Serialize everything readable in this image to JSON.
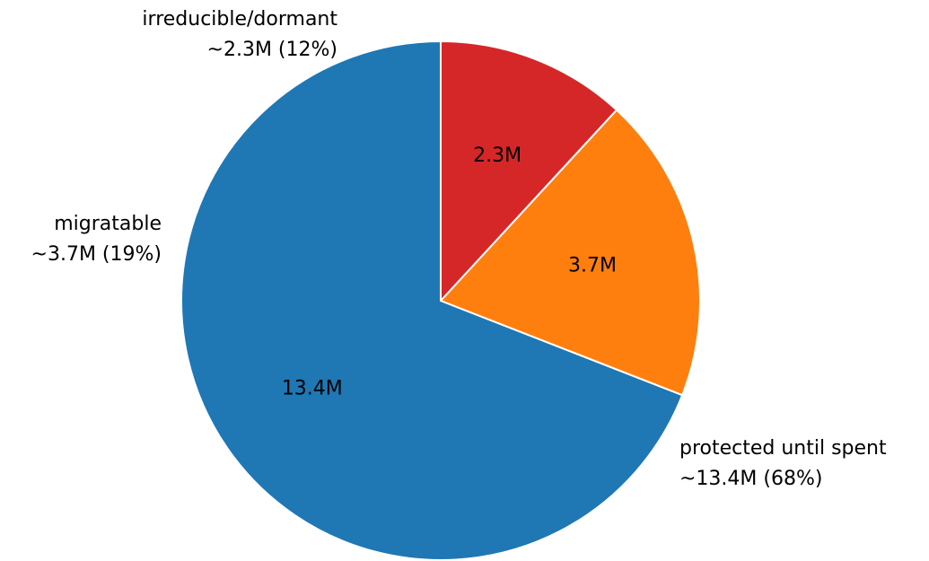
{
  "chart_data": {
    "type": "pie",
    "title": "",
    "start_angle_deg": 90,
    "direction": "counterclockwise",
    "slices": [
      {
        "name": "protected until spent",
        "value": 13.4,
        "value_label": "13.4M",
        "outer_label_line1": "protected until spent",
        "outer_label_line2": "~13.4M (68%)",
        "percent": 68,
        "color": "#1f77b4"
      },
      {
        "name": "migratable",
        "value": 3.7,
        "value_label": "3.7M",
        "outer_label_line1": "migratable",
        "outer_label_line2": "~3.7M (19%)",
        "percent": 19,
        "color": "#ff7f0e"
      },
      {
        "name": "irreducible/dormant",
        "value": 2.3,
        "value_label": "2.3M",
        "outer_label_line1": "irreducible/dormant",
        "outer_label_line2": "~2.3M (12%)",
        "percent": 12,
        "color": "#d62728"
      }
    ]
  }
}
